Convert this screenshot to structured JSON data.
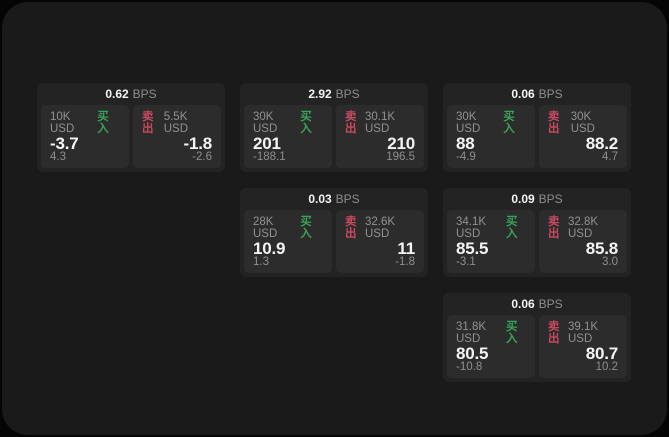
{
  "labels": {
    "bps": "BPS",
    "buy": "买入",
    "sell": "卖出"
  },
  "colors": {
    "background": "#050505",
    "window": "#1a1a1b",
    "card": "#232324",
    "panel": "#2c2c2d",
    "buy_accent": "#3aa257",
    "sell_accent": "#c9495f",
    "text_primary": "#f4f4f4",
    "text_muted": "#8e8e90"
  },
  "grid": {
    "columns": 3,
    "rows": 3
  },
  "cards": [
    {
      "bps": "0.62",
      "col": 1,
      "row": 1,
      "buy": {
        "size": "10K USD",
        "price": "-3.7",
        "delta": "4.3"
      },
      "sell": {
        "size": "5.5K USD",
        "price": "-1.8",
        "delta": "-2.6"
      }
    },
    {
      "bps": "2.92",
      "col": 2,
      "row": 1,
      "buy": {
        "size": "30K USD",
        "price": "201",
        "delta": "-188.1"
      },
      "sell": {
        "size": "30.1K USD",
        "price": "210",
        "delta": "196.5"
      }
    },
    {
      "bps": "0.06",
      "col": 3,
      "row": 1,
      "buy": {
        "size": "30K USD",
        "price": "88",
        "delta": "-4.9"
      },
      "sell": {
        "size": "30K USD",
        "price": "88.2",
        "delta": "4.7"
      }
    },
    {
      "bps": "0.03",
      "col": 2,
      "row": 2,
      "buy": {
        "size": "28K USD",
        "price": "10.9",
        "delta": "1.3"
      },
      "sell": {
        "size": "32.6K USD",
        "price": "11",
        "delta": "-1.8"
      }
    },
    {
      "bps": "0.09",
      "col": 3,
      "row": 2,
      "buy": {
        "size": "34.1K USD",
        "price": "85.5",
        "delta": "-3.1"
      },
      "sell": {
        "size": "32.8K USD",
        "price": "85.8",
        "delta": "3.0"
      }
    },
    {
      "bps": "0.06",
      "col": 3,
      "row": 3,
      "buy": {
        "size": "31.8K USD",
        "price": "80.5",
        "delta": "-10.8"
      },
      "sell": {
        "size": "39.1K USD",
        "price": "80.7",
        "delta": "10.2"
      }
    }
  ]
}
